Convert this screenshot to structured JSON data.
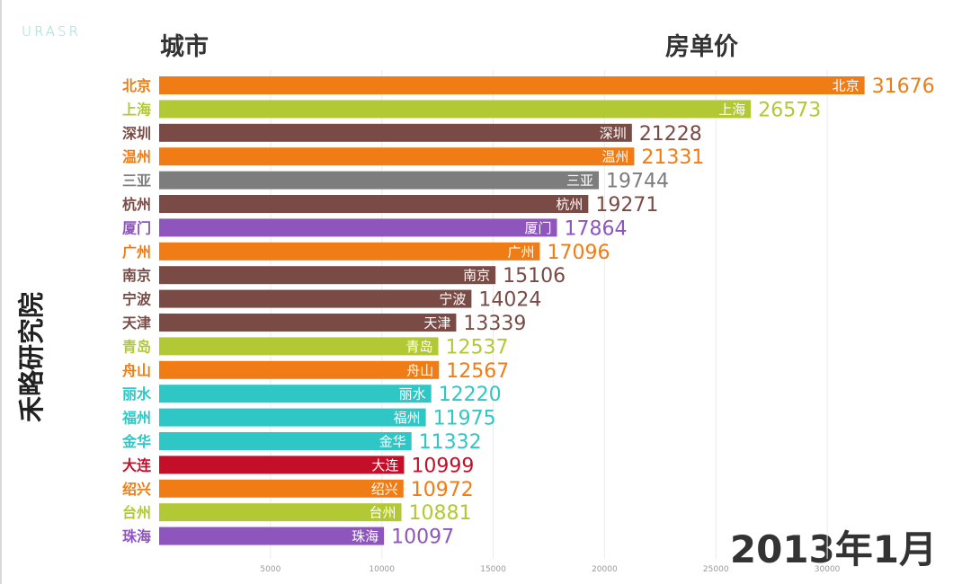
{
  "logo_text": "URASR",
  "headers": {
    "city": "城市",
    "price": "房单价"
  },
  "side_label": "禾略研究院",
  "date_label": "2013年1月",
  "chart_data": {
    "type": "bar",
    "orientation": "horizontal",
    "categories": [
      "北京",
      "上海",
      "深圳",
      "温州",
      "三亚",
      "杭州",
      "厦门",
      "广州",
      "南京",
      "宁波",
      "天津",
      "青岛",
      "舟山",
      "丽水",
      "福州",
      "金华",
      "大连",
      "绍兴",
      "台州",
      "珠海"
    ],
    "values": [
      31676,
      26573,
      21228,
      21331,
      19744,
      19271,
      17864,
      17096,
      15106,
      14024,
      13339,
      12537,
      12567,
      12220,
      11975,
      11332,
      10999,
      10972,
      10881,
      10097
    ],
    "colors": [
      "#f07c15",
      "#b2c935",
      "#7a4b45",
      "#f07c15",
      "#7d7d7d",
      "#7a4b45",
      "#8e55bd",
      "#f07c15",
      "#7a4b45",
      "#7a4b45",
      "#7a4b45",
      "#b2c935",
      "#f07c15",
      "#2ec7c5",
      "#2ec7c5",
      "#2ec7c5",
      "#c40f2a",
      "#f07c15",
      "#b2c935",
      "#8e55bd"
    ],
    "xlim": [
      0,
      32500
    ],
    "xticks": [
      5000,
      10000,
      15000,
      20000,
      25000,
      30000
    ],
    "xtick_labels": [
      "5000",
      "10000",
      "15000",
      "20000",
      "25000",
      "30000"
    ],
    "grid": true,
    "legend": false
  }
}
